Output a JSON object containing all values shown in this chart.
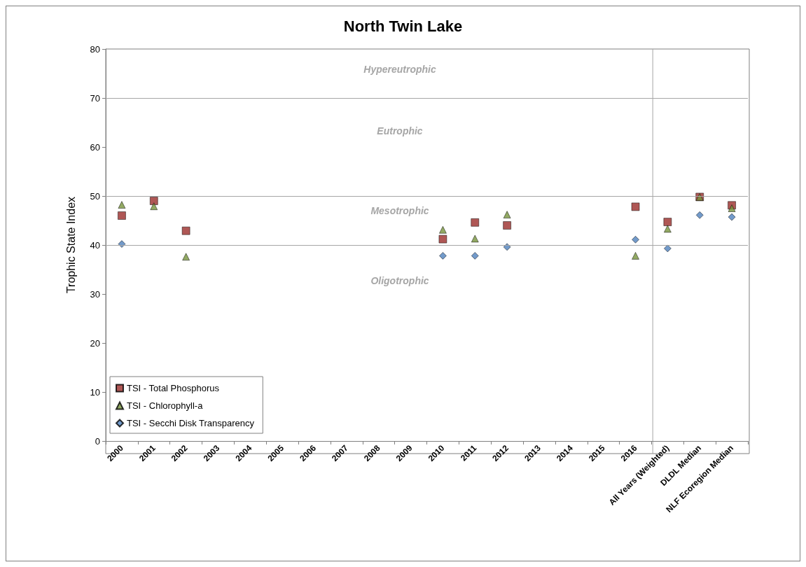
{
  "chart_data": {
    "type": "scatter",
    "title": "North Twin Lake",
    "ylabel": "Trophic State Index",
    "categories": [
      "2000",
      "2001",
      "2002",
      "2003",
      "2004",
      "2005",
      "2006",
      "2007",
      "2008",
      "2009",
      "2010",
      "2011",
      "2012",
      "2013",
      "2014",
      "2015",
      "2016",
      "All Years (Weighted)",
      "DLDL Median",
      "NLF Ecoregion Median"
    ],
    "series": [
      {
        "name": "TSI - Total Phosphorus",
        "color": "#9b2d2a",
        "marker": "square",
        "values": [
          46,
          49,
          42.9,
          null,
          null,
          null,
          null,
          null,
          null,
          null,
          41.2,
          44.6,
          44,
          null,
          null,
          null,
          47.8,
          44.7,
          49.8,
          48.1
        ]
      },
      {
        "name": "TSI - Chlorophyll-a",
        "color": "#77933c",
        "marker": "triangle",
        "values": [
          48.2,
          47.9,
          37.6,
          null,
          null,
          null,
          null,
          null,
          null,
          null,
          43.1,
          41.3,
          46.2,
          null,
          null,
          null,
          37.8,
          43.3,
          49.8,
          47.5
        ]
      },
      {
        "name": "TSI - Secchi Disk Transparency",
        "color": "#4f81bd",
        "marker": "diamond",
        "values": [
          40.2,
          null,
          null,
          null,
          null,
          null,
          null,
          null,
          null,
          null,
          37.8,
          37.8,
          39.6,
          null,
          null,
          null,
          41.1,
          39.3,
          46.1,
          45.7
        ]
      }
    ],
    "ylim": [
      0,
      80
    ],
    "yticks": [
      0,
      10,
      20,
      30,
      40,
      50,
      60,
      70,
      80
    ],
    "grid": false,
    "legend": "bottom left",
    "ref_lines": [
      {
        "axis": "y",
        "value": 40,
        "color": "#a6a6a6"
      },
      {
        "axis": "y",
        "value": 50,
        "color": "#a6a6a6"
      },
      {
        "axis": "y",
        "value": 70,
        "color": "#a6a6a6"
      }
    ],
    "annotations": [
      "Hypereutrophic",
      "Eutrophic",
      "Mesotrophic",
      "Oligotrophic"
    ]
  }
}
